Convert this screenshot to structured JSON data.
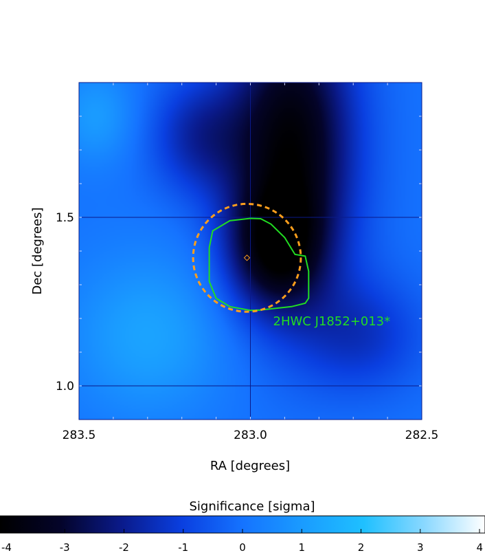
{
  "chart_data": {
    "type": "heatmap",
    "xlabel": "RA [degrees]",
    "ylabel": "Dec [degrees]",
    "xlim": [
      283.5,
      282.5
    ],
    "ylim": [
      0.9,
      1.9
    ],
    "x_ticks": [
      283.5,
      283.0,
      282.5
    ],
    "x_tick_labels": [
      "283.5",
      "283.0",
      "282.5"
    ],
    "y_ticks": [
      1.0,
      1.5
    ],
    "y_tick_labels": [
      "1.0",
      "1.5"
    ],
    "grid": true,
    "colorbar": {
      "label": "Significance [sigma]",
      "range": [
        -4,
        4
      ],
      "ticks": [
        -4,
        -3,
        -2,
        -1,
        0,
        1,
        2,
        3,
        4
      ],
      "tick_labels": [
        "-4",
        "-3",
        "-2",
        "-1",
        "0",
        "1",
        "2",
        "3",
        "4"
      ],
      "colors": [
        "#000000",
        "#04042a",
        "#0a1a8a",
        "#0a3fe0",
        "#1573ff",
        "#1a9cff",
        "#1fc0ff",
        "#8ad8ff",
        "#ffffff"
      ]
    },
    "source": {
      "name": "2HWC J1852+013*",
      "ra": 283.01,
      "dec": 1.38,
      "extent_radius_deg": 0.16,
      "marker": "diamond",
      "circle_color": "#ff9f1c",
      "contour_color": "#22dd22"
    },
    "contour": [
      [
        282.84,
        1.385
      ],
      [
        282.83,
        1.34
      ],
      [
        282.83,
        1.26
      ],
      [
        282.84,
        1.245
      ],
      [
        282.88,
        1.235
      ],
      [
        282.97,
        1.225
      ],
      [
        283.0,
        1.224
      ],
      [
        283.06,
        1.235
      ],
      [
        283.1,
        1.26
      ],
      [
        283.12,
        1.31
      ],
      [
        283.12,
        1.41
      ],
      [
        283.11,
        1.46
      ],
      [
        283.06,
        1.49
      ],
      [
        283.0,
        1.497
      ],
      [
        282.97,
        1.496
      ],
      [
        282.94,
        1.48
      ],
      [
        282.9,
        1.44
      ],
      [
        282.87,
        1.39
      ],
      [
        282.84,
        1.385
      ]
    ],
    "significance_features": [
      {
        "ra": 282.88,
        "dec": 1.72,
        "value": -3.8,
        "sigma_ra": 0.13,
        "sigma_dec": 0.3
      },
      {
        "ra": 282.93,
        "dec": 1.4,
        "value": -2.6,
        "sigma_ra": 0.1,
        "sigma_dec": 0.13
      },
      {
        "ra": 282.68,
        "dec": 1.15,
        "value": -1.3,
        "sigma_ra": 0.13,
        "sigma_dec": 0.12
      },
      {
        "ra": 283.15,
        "dec": 1.74,
        "value": -1.6,
        "sigma_ra": 0.1,
        "sigma_dec": 0.12
      },
      {
        "ra": 283.3,
        "dec": 1.15,
        "value": 1.2,
        "sigma_ra": 0.16,
        "sigma_dec": 0.17
      },
      {
        "ra": 283.45,
        "dec": 1.8,
        "value": 1.0,
        "sigma_ra": 0.08,
        "sigma_dec": 0.1
      }
    ],
    "background_value": 0.0
  }
}
